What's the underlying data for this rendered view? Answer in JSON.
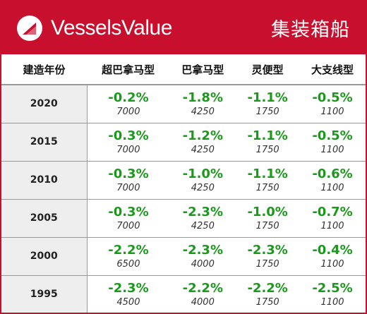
{
  "header": {
    "brand": "VesselsValue",
    "segment": "集装箱船",
    "logo_icon": "vesselsvalue-logo-icon",
    "color": "#c8102e"
  },
  "table": {
    "columns": [
      "建造年份",
      "超巴拿马型",
      "巴拿马型",
      "灵便型",
      "大支线型"
    ],
    "rows": [
      {
        "year": "2020",
        "cells": [
          {
            "pct": "-0.2%",
            "vol": "7000"
          },
          {
            "pct": "-1.8%",
            "vol": "4250"
          },
          {
            "pct": "-1.1%",
            "vol": "1750"
          },
          {
            "pct": "-0.5%",
            "vol": "1100"
          }
        ]
      },
      {
        "year": "2015",
        "cells": [
          {
            "pct": "-0.3%",
            "vol": "7000"
          },
          {
            "pct": "-1.2%",
            "vol": "4250"
          },
          {
            "pct": "-1.1%",
            "vol": "1750"
          },
          {
            "pct": "-0.5%",
            "vol": "1100"
          }
        ]
      },
      {
        "year": "2010",
        "cells": [
          {
            "pct": "-0.3%",
            "vol": "7000"
          },
          {
            "pct": "-1.0%",
            "vol": "4250"
          },
          {
            "pct": "-1.1%",
            "vol": "1750"
          },
          {
            "pct": "-0.6%",
            "vol": "1100"
          }
        ]
      },
      {
        "year": "2005",
        "cells": [
          {
            "pct": "-0.3%",
            "vol": "7000"
          },
          {
            "pct": "-2.3%",
            "vol": "4250"
          },
          {
            "pct": "-1.0%",
            "vol": "1750"
          },
          {
            "pct": "-0.7%",
            "vol": "1100"
          }
        ]
      },
      {
        "year": "2000",
        "cells": [
          {
            "pct": "-2.2%",
            "vol": "6500"
          },
          {
            "pct": "-2.3%",
            "vol": "4000"
          },
          {
            "pct": "-2.3%",
            "vol": "1750"
          },
          {
            "pct": "-0.4%",
            "vol": "1100"
          }
        ]
      },
      {
        "year": "1995",
        "cells": [
          {
            "pct": "-2.3%",
            "vol": "4500"
          },
          {
            "pct": "-2.2%",
            "vol": "4000"
          },
          {
            "pct": "-2.2%",
            "vol": "1750"
          },
          {
            "pct": "-2.5%",
            "vol": "1100"
          }
        ]
      }
    ],
    "change_color": "#1a9a1a"
  }
}
